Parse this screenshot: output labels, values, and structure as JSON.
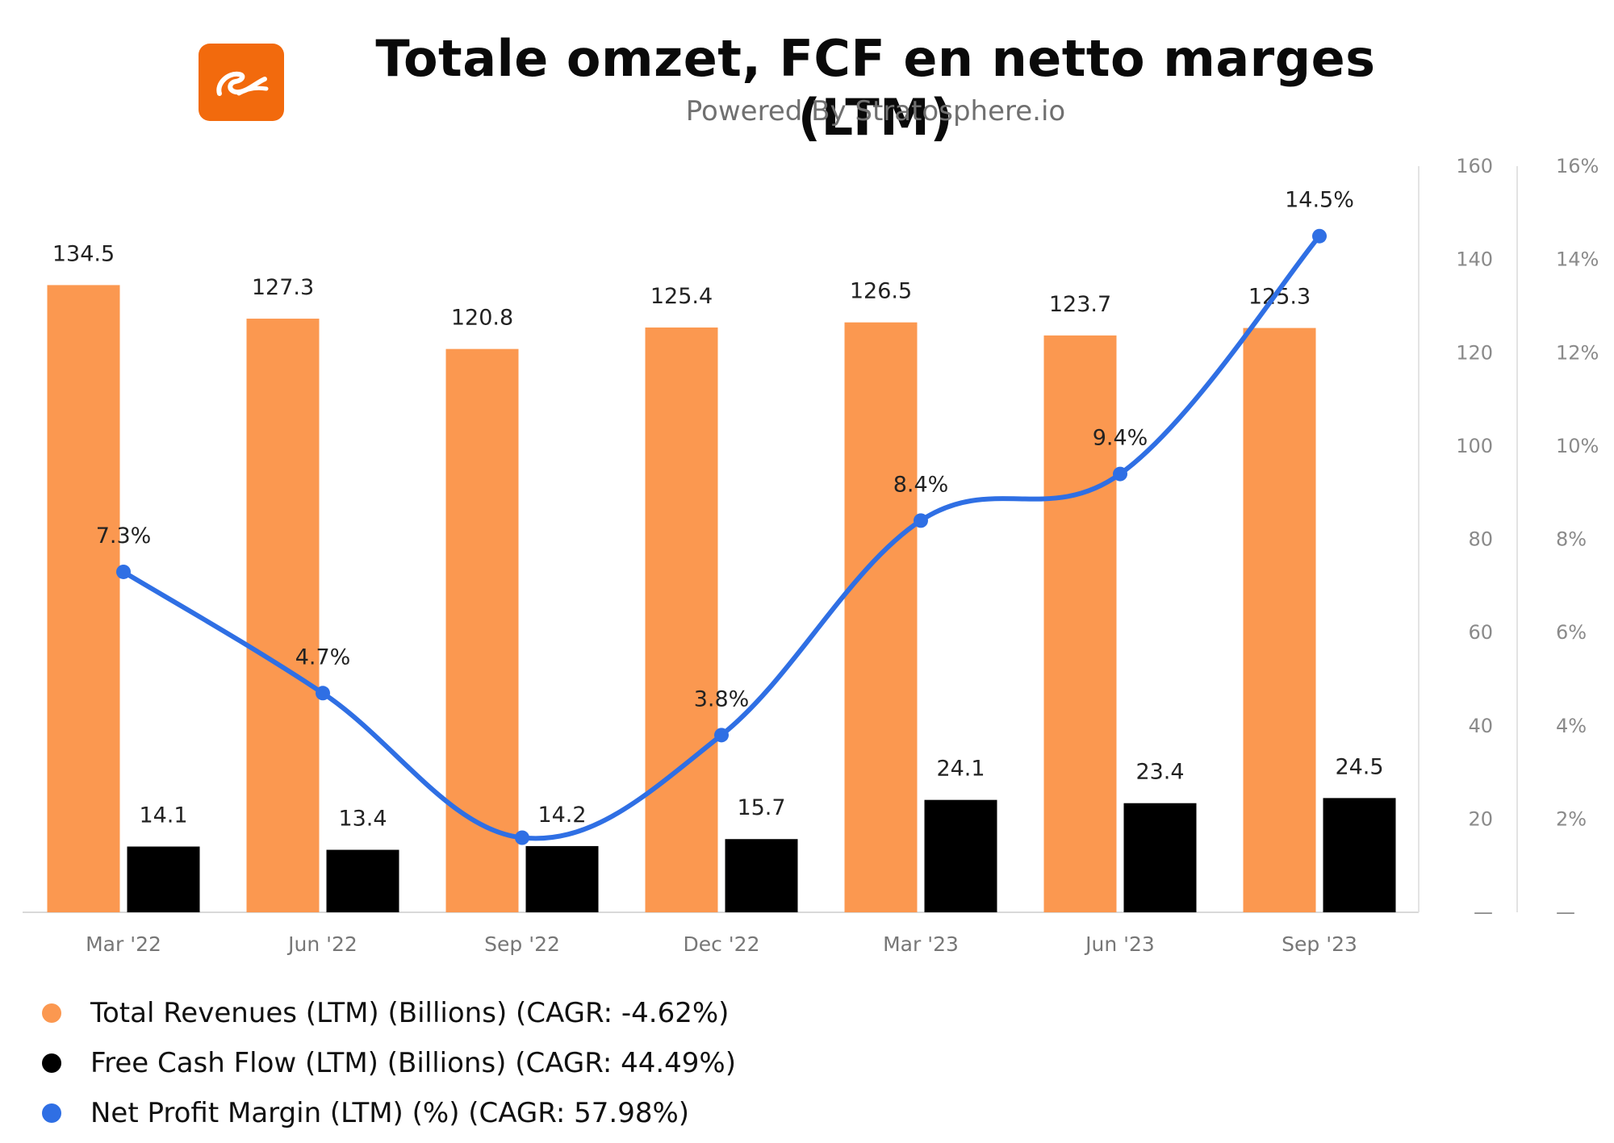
{
  "header": {
    "title": "Totale omzet, FCF en netto marges (LTM)",
    "subtitle": "Powered By Stratosphere.io",
    "logo_icon": "alibaba-logo-icon"
  },
  "colors": {
    "revenue": "#fb9850",
    "fcf": "#000000",
    "margin": "#2f6fe4",
    "logo_bg": "#f26a0d"
  },
  "legend": [
    {
      "label": "Total Revenues (LTM) (Billions) (CAGR: -4.62%)",
      "color": "#fb9850"
    },
    {
      "label": "Free Cash Flow (LTM) (Billions) (CAGR: 44.49%)",
      "color": "#000000"
    },
    {
      "label": "Net Profit Margin (LTM) (%) (CAGR: 57.98%)",
      "color": "#2f6fe4"
    }
  ],
  "chart_data": {
    "type": "bar",
    "categories": [
      "Mar '22",
      "Jun '22",
      "Sep '22",
      "Dec '22",
      "Mar '23",
      "Jun '23",
      "Sep '23"
    ],
    "series": [
      {
        "name": "Total Revenues (LTM) (Billions)",
        "type": "bar",
        "axis": "left",
        "values": [
          134.5,
          127.3,
          120.8,
          125.4,
          126.5,
          123.7,
          125.3
        ],
        "labels": [
          "134.5",
          "127.3",
          "120.8",
          "125.4",
          "126.5",
          "123.7",
          "125.3"
        ]
      },
      {
        "name": "Free Cash Flow (LTM) (Billions)",
        "type": "bar",
        "axis": "left",
        "values": [
          14.1,
          13.4,
          14.2,
          15.7,
          24.1,
          23.4,
          24.5
        ],
        "labels": [
          "14.1",
          "13.4",
          "14.2",
          "15.7",
          "24.1",
          "23.4",
          "24.5"
        ]
      },
      {
        "name": "Net Profit Margin (LTM) (%)",
        "type": "line",
        "axis": "right",
        "values": [
          7.3,
          4.7,
          1.6,
          3.8,
          8.4,
          9.4,
          14.5
        ],
        "labels": [
          "7.3%",
          "4.7%",
          "",
          "3.8%",
          "8.4%",
          "9.4%",
          "14.5%"
        ]
      }
    ],
    "y_left": {
      "ylim": [
        0,
        160
      ],
      "ticks": [
        "—",
        "20",
        "40",
        "60",
        "80",
        "100",
        "120",
        "140",
        "160"
      ]
    },
    "y_right": {
      "ylim": [
        0,
        16
      ],
      "ticks": [
        "—",
        "2%",
        "4%",
        "6%",
        "8%",
        "10%",
        "12%",
        "14%",
        "16%"
      ]
    },
    "grid": false,
    "legend_position": "bottom-left"
  }
}
